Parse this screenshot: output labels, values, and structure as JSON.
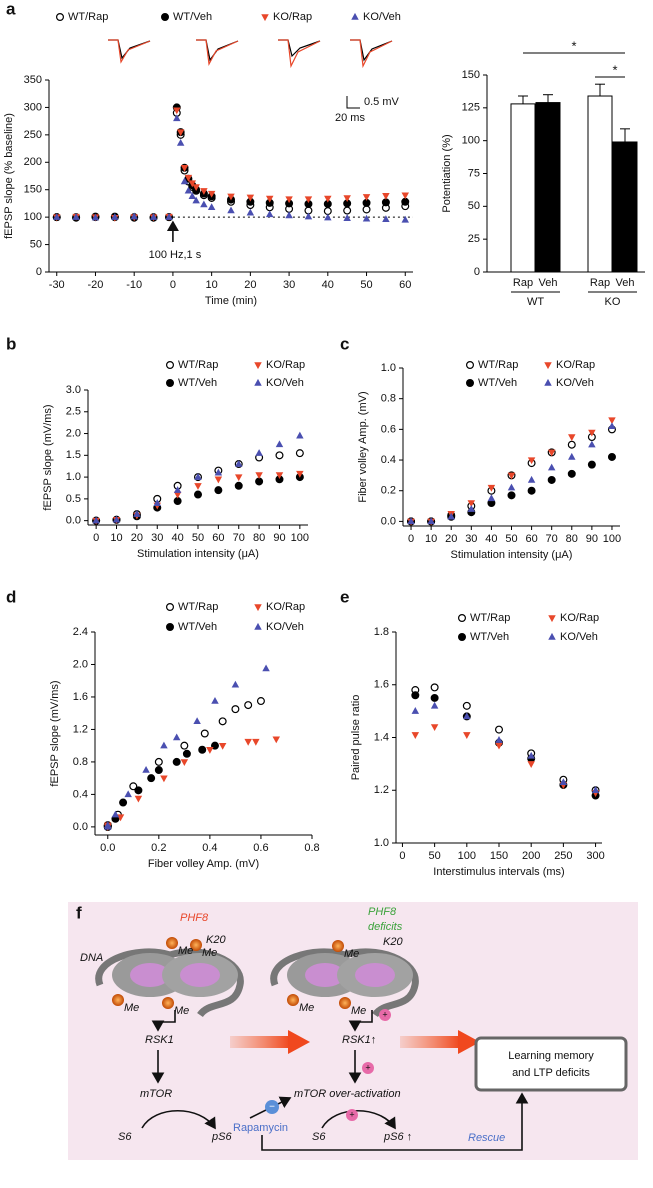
{
  "chart_data": [
    {
      "type": "scatter",
      "xlabel": "Time (min)",
      "ylabel": "fEPSP slope (% baseline)",
      "annotation": "100 Hz,1 s",
      "scale_bar": {
        "y": "0.5 mV",
        "x": "20 ms"
      },
      "reference_line": 100,
      "x": [
        -30,
        -25,
        -20,
        -15,
        -10,
        -5,
        -1,
        1,
        2,
        3,
        4,
        5,
        6,
        8,
        10,
        15,
        20,
        25,
        30,
        35,
        40,
        45,
        50,
        55,
        60
      ],
      "xlim": [
        -32,
        62
      ],
      "xticks": [
        -30,
        -20,
        -10,
        0,
        10,
        20,
        30,
        40,
        50,
        60
      ],
      "ylim": [
        0,
        350
      ],
      "yticks": [
        0,
        50,
        100,
        150,
        200,
        250,
        300,
        350
      ],
      "series": [
        {
          "name": "WT/Rap",
          "color": "#000000",
          "marker": "open-circle",
          "values": [
            100,
            99,
            101,
            100,
            99,
            100,
            100,
            290,
            250,
            185,
            165,
            155,
            148,
            140,
            135,
            128,
            122,
            118,
            115,
            112,
            111,
            112,
            114,
            117,
            120
          ]
        },
        {
          "name": "WT/Veh",
          "color": "#000000",
          "marker": "circle",
          "values": [
            100,
            100,
            100,
            101,
            100,
            99,
            100,
            300,
            255,
            190,
            170,
            158,
            150,
            143,
            138,
            132,
            128,
            126,
            125,
            124,
            124,
            125,
            126,
            127,
            128
          ]
        },
        {
          "name": "KO/Rap",
          "color": "#e8472a",
          "marker": "triangle-down",
          "values": [
            100,
            101,
            100,
            99,
            100,
            100,
            101,
            295,
            255,
            190,
            172,
            162,
            155,
            148,
            143,
            138,
            136,
            134,
            133,
            133,
            134,
            135,
            137,
            139,
            140
          ]
        },
        {
          "name": "KO/Veh",
          "color": "#4a4fb0",
          "marker": "triangle-up",
          "values": [
            100,
            100,
            99,
            100,
            101,
            100,
            100,
            280,
            235,
            165,
            148,
            138,
            130,
            123,
            118,
            112,
            108,
            105,
            103,
            101,
            99,
            98,
            97,
            96,
            95
          ]
        }
      ]
    },
    {
      "type": "bar",
      "ylabel": "Potentiation (%)",
      "categories": [
        "Rap",
        "Veh",
        "Rap",
        "Veh"
      ],
      "groups": [
        "WT",
        "KO"
      ],
      "values": [
        128,
        129,
        134,
        99
      ],
      "errors": [
        6,
        6,
        9,
        10
      ],
      "colors": [
        "#ffffff",
        "#000000",
        "#ffffff",
        "#000000"
      ],
      "annotations": [
        "*",
        "*"
      ],
      "ylim": [
        0,
        150
      ],
      "yticks": [
        0,
        25,
        50,
        75,
        100,
        125,
        150
      ]
    },
    {
      "type": "scatter",
      "xlabel": "Stimulation intensity (μA)",
      "ylabel": "fEPSP slope (mV/ms)",
      "x": [
        0,
        10,
        20,
        30,
        40,
        50,
        60,
        70,
        80,
        90,
        100
      ],
      "xlim": [
        -4,
        104
      ],
      "xticks": [
        0,
        10,
        20,
        30,
        40,
        50,
        60,
        70,
        80,
        90,
        100
      ],
      "ylim": [
        -0.1,
        3.0
      ],
      "yticks": [
        {
          "value": 0,
          "label": "0.0"
        },
        0.5,
        {
          "value": 1,
          "label": "1.0"
        },
        1.5,
        {
          "value": 2,
          "label": "2.0"
        },
        2.5,
        {
          "value": 3,
          "label": "3.0"
        }
      ],
      "series": [
        {
          "name": "WT/Rap",
          "color": "#000000",
          "marker": "open-circle",
          "values": [
            0,
            0.02,
            0.15,
            0.5,
            0.8,
            1.0,
            1.15,
            1.3,
            1.45,
            1.5,
            1.55
          ]
        },
        {
          "name": "WT/Veh",
          "color": "#000000",
          "marker": "circle",
          "values": [
            0,
            0.02,
            0.1,
            0.3,
            0.45,
            0.6,
            0.7,
            0.8,
            0.9,
            0.95,
            1.0
          ]
        },
        {
          "name": "KO/Rap",
          "color": "#e8472a",
          "marker": "triangle-down",
          "values": [
            0,
            0.02,
            0.12,
            0.35,
            0.6,
            0.8,
            0.95,
            1.0,
            1.05,
            1.05,
            1.08
          ]
        },
        {
          "name": "KO/Veh",
          "color": "#4a4fb0",
          "marker": "triangle-up",
          "values": [
            0,
            0.02,
            0.15,
            0.4,
            0.7,
            1.0,
            1.1,
            1.3,
            1.55,
            1.75,
            1.95
          ]
        }
      ]
    },
    {
      "type": "scatter",
      "xlabel": "Stimulation intensity (μA)",
      "ylabel": "Fiber volley Amp. (mV)",
      "x": [
        0,
        10,
        20,
        30,
        40,
        50,
        60,
        70,
        80,
        90,
        100
      ],
      "xlim": [
        -4,
        104
      ],
      "xticks": [
        0,
        10,
        20,
        30,
        40,
        50,
        60,
        70,
        80,
        90,
        100
      ],
      "ylim": [
        -0.03,
        1.0
      ],
      "yticks": [
        {
          "value": 0,
          "label": "0.0"
        },
        0.2,
        0.4,
        0.6,
        0.8,
        {
          "value": 1,
          "label": "1.0"
        }
      ],
      "series": [
        {
          "name": "WT/Rap",
          "color": "#000000",
          "marker": "open-circle",
          "values": [
            0,
            0,
            0.04,
            0.1,
            0.2,
            0.3,
            0.38,
            0.45,
            0.5,
            0.55,
            0.6
          ]
        },
        {
          "name": "WT/Veh",
          "color": "#000000",
          "marker": "circle",
          "values": [
            0,
            0,
            0.03,
            0.06,
            0.12,
            0.17,
            0.2,
            0.27,
            0.31,
            0.37,
            0.42
          ]
        },
        {
          "name": "KO/Rap",
          "color": "#e8472a",
          "marker": "triangle-down",
          "values": [
            0,
            0,
            0.05,
            0.12,
            0.22,
            0.3,
            0.4,
            0.45,
            0.55,
            0.58,
            0.66
          ]
        },
        {
          "name": "KO/Veh",
          "color": "#4a4fb0",
          "marker": "triangle-up",
          "values": [
            0,
            0,
            0.03,
            0.08,
            0.15,
            0.22,
            0.27,
            0.35,
            0.42,
            0.5,
            0.62
          ]
        }
      ]
    },
    {
      "type": "scatter",
      "xlabel": "Fiber volley Amp. (mV)",
      "ylabel": "fEPSP slope (mV/ms)",
      "xlim": [
        -0.05,
        0.8
      ],
      "xticks": [
        {
          "value": 0,
          "label": "0.0"
        },
        0.2,
        0.4,
        0.6,
        0.8
      ],
      "ylim": [
        -0.1,
        2.4
      ],
      "yticks": [
        {
          "value": 0,
          "label": "0.0"
        },
        0.4,
        0.8,
        1.2,
        1.6,
        {
          "value": 2,
          "label": "2.0"
        },
        2.4
      ],
      "series": [
        {
          "name": "WT/Rap",
          "color": "#000000",
          "marker": "open-circle",
          "x": [
            0,
            0,
            0.04,
            0.1,
            0.2,
            0.3,
            0.38,
            0.45,
            0.5,
            0.55,
            0.6
          ],
          "values": [
            0,
            0.02,
            0.15,
            0.5,
            0.8,
            1.0,
            1.15,
            1.3,
            1.45,
            1.5,
            1.55
          ]
        },
        {
          "name": "WT/Veh",
          "color": "#000000",
          "marker": "circle",
          "x": [
            0,
            0,
            0.03,
            0.06,
            0.12,
            0.17,
            0.2,
            0.27,
            0.31,
            0.37,
            0.42
          ],
          "values": [
            0,
            0.02,
            0.1,
            0.3,
            0.45,
            0.6,
            0.7,
            0.8,
            0.9,
            0.95,
            1.0
          ]
        },
        {
          "name": "KO/Rap",
          "color": "#e8472a",
          "marker": "triangle-down",
          "x": [
            0,
            0,
            0.05,
            0.12,
            0.22,
            0.3,
            0.4,
            0.45,
            0.55,
            0.58,
            0.66
          ],
          "values": [
            0,
            0.02,
            0.12,
            0.35,
            0.6,
            0.8,
            0.95,
            1.0,
            1.05,
            1.05,
            1.08
          ]
        },
        {
          "name": "KO/Veh",
          "color": "#4a4fb0",
          "marker": "triangle-up",
          "x": [
            0,
            0,
            0.03,
            0.08,
            0.15,
            0.22,
            0.27,
            0.35,
            0.42,
            0.5,
            0.62
          ],
          "values": [
            0,
            0.02,
            0.15,
            0.4,
            0.7,
            1.0,
            1.1,
            1.3,
            1.55,
            1.75,
            1.95
          ]
        }
      ]
    },
    {
      "type": "scatter",
      "xlabel": "Interstimulus intervals (ms)",
      "ylabel": "Paired pulse ratio",
      "x": [
        20,
        50,
        100,
        150,
        200,
        250,
        300
      ],
      "xlim": [
        -10,
        310
      ],
      "xticks": [
        0,
        50,
        100,
        150,
        200,
        250,
        300
      ],
      "ylim": [
        1.0,
        1.8
      ],
      "yticks": [
        {
          "value": 1,
          "label": "1.0"
        },
        1.2,
        1.4,
        1.6,
        1.8
      ],
      "series": [
        {
          "name": "WT/Rap",
          "color": "#000000",
          "marker": "open-circle",
          "values": [
            1.58,
            1.59,
            1.52,
            1.43,
            1.34,
            1.24,
            1.2
          ]
        },
        {
          "name": "WT/Veh",
          "color": "#000000",
          "marker": "circle",
          "values": [
            1.56,
            1.55,
            1.48,
            1.38,
            1.32,
            1.22,
            1.18
          ]
        },
        {
          "name": "KO/Rap",
          "color": "#e8472a",
          "marker": "triangle-down",
          "values": [
            1.41,
            1.44,
            1.41,
            1.37,
            1.3,
            1.22,
            1.19
          ]
        },
        {
          "name": "KO/Veh",
          "color": "#4a4fb0",
          "marker": "triangle-up",
          "values": [
            1.5,
            1.52,
            1.48,
            1.39,
            1.33,
            1.23,
            1.2
          ]
        }
      ]
    }
  ],
  "panel_labels": [
    "a",
    "b",
    "c",
    "d",
    "e",
    "f"
  ],
  "diagram": {
    "phf8": "PHF8",
    "phf8_deficits": [
      "PHF8",
      "deficits"
    ],
    "k20": [
      "K20",
      "K20"
    ],
    "dna": "DNA",
    "me": [
      "Me",
      "Me",
      "Me",
      "Me",
      "Me",
      "Me",
      "Me"
    ],
    "rsk1": "RSK1",
    "rsk1_up": "RSK1↑",
    "mtor": "mTOR",
    "mtor_over": "mTOR over-activation",
    "s6": [
      "S6",
      "S6"
    ],
    "ps6": "pS6",
    "ps6_up": "pS6 ↑",
    "rapamycin": "Rapamycin",
    "rescue": "Rescue",
    "outcome": [
      "Learning memory",
      "and LTP deficits"
    ]
  }
}
